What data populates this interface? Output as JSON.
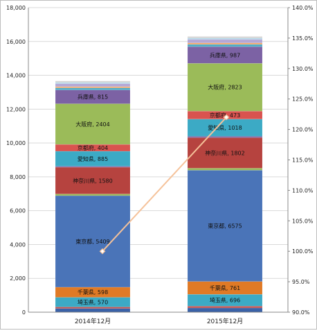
{
  "chart_data": {
    "type": "bar",
    "stacked": true,
    "title": "",
    "xlabel": "",
    "ylabel": "",
    "categories": [
      "2014年12月",
      "2015年12月"
    ],
    "ylim": [
      0,
      18000
    ],
    "y_ticks": [
      "0",
      "2,000",
      "4,000",
      "6,000",
      "8,000",
      "10,000",
      "12,000",
      "14,000",
      "16,000",
      "18,000"
    ],
    "y2lim": [
      90.0,
      140.0
    ],
    "y2_ticks": [
      "90.0%",
      "95.0%",
      "100.0%",
      "105.0%",
      "110.0%",
      "115.0%",
      "120.0%",
      "125.0%",
      "130.0%",
      "135.0%",
      "140.0%"
    ],
    "grid": true,
    "legend": "none",
    "series": [
      {
        "name": "bottom-1",
        "color": "#3a62a8",
        "values": [
          220,
          250
        ],
        "label": ""
      },
      {
        "name": "bottom-2",
        "color": "#c0504d",
        "values": [
          90,
          110
        ],
        "label": ""
      },
      {
        "name": "埼玉県",
        "color": "#3caac5",
        "values": [
          570,
          696
        ],
        "label": "埼玉県"
      },
      {
        "name": "千葉県",
        "color": "#e07a26",
        "values": [
          598,
          761
        ],
        "label": "千葉県"
      },
      {
        "name": "東京都",
        "color": "#4a74b8",
        "values": [
          5409,
          6575
        ],
        "label": "東京都"
      },
      {
        "name": "mid-1",
        "color": "#9bbb59",
        "values": [
          100,
          120
        ],
        "label": ""
      },
      {
        "name": "神奈川県",
        "color": "#b6433f",
        "values": [
          1580,
          1802
        ],
        "label": "神奈川県"
      },
      {
        "name": "mid-2",
        "color": "#8064a2",
        "values": [
          60,
          80
        ],
        "label": ""
      },
      {
        "name": "愛知県",
        "color": "#3caac5",
        "values": [
          885,
          1018
        ],
        "label": "愛知県"
      },
      {
        "name": "京都府",
        "color": "#d9534f",
        "values": [
          404,
          473
        ],
        "label": "京都府"
      },
      {
        "name": "大阪府",
        "color": "#9bbb59",
        "values": [
          2404,
          2823
        ],
        "label": "大阪府"
      },
      {
        "name": "兵庫県",
        "color": "#7c62a4",
        "values": [
          815,
          987
        ],
        "label": "兵庫県"
      },
      {
        "name": "top-1",
        "color": "#4bacc6",
        "values": [
          120,
          130
        ],
        "label": ""
      },
      {
        "name": "top-2",
        "color": "#f2a96e",
        "values": [
          80,
          90
        ],
        "label": ""
      },
      {
        "name": "top-3",
        "color": "#b4a7d6",
        "values": [
          170,
          200
        ],
        "label": ""
      },
      {
        "name": "top-4",
        "color": "#b7d7e8",
        "values": [
          80,
          90
        ],
        "label": ""
      },
      {
        "name": "top-5",
        "color": "#d3d3d3",
        "values": [
          80,
          90
        ],
        "label": ""
      }
    ],
    "line_series": {
      "name": "",
      "axis": "secondary",
      "color": "#f5c29a",
      "values": [
        100.0,
        122.0
      ]
    }
  }
}
